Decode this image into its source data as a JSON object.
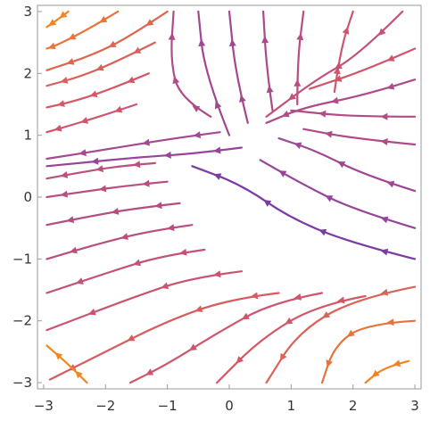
{
  "chart_data": {
    "type": "streamplot",
    "title": "",
    "xlabel": "",
    "ylabel": "",
    "xlim": [
      -3.1,
      3.1
    ],
    "ylim": [
      -3.1,
      3.1
    ],
    "x_ticks": [
      -3,
      -2,
      -1,
      0,
      1,
      2,
      3
    ],
    "y_ticks": [
      -3,
      -2,
      -1,
      0,
      1,
      2,
      3
    ],
    "x_tick_labels": [
      "−3",
      "−2",
      "−1",
      "0",
      "1",
      "2",
      "3"
    ],
    "y_tick_labels": [
      "−3",
      "−2",
      "−1",
      "0",
      "1",
      "2",
      "3"
    ],
    "grid": false,
    "legend": "none",
    "color_scheme": {
      "description": "speed-colored streamlines, slow = dark blue/purple, fast = orange",
      "low": "#2a1f96",
      "mid": "#8a3fa6",
      "high_mid": "#d2566a",
      "high": "#f4861d"
    },
    "streamlines": [
      {
        "points": [
          [
            -1.2,
            0.55
          ],
          [
            -1.8,
            0.5
          ],
          [
            -2.4,
            0.4
          ],
          [
            -2.95,
            0.3
          ]
        ]
      },
      {
        "points": [
          [
            -1.0,
            0.25
          ],
          [
            -1.7,
            0.18
          ],
          [
            -2.4,
            0.08
          ],
          [
            -2.95,
            0.0
          ]
        ]
      },
      {
        "points": [
          [
            -0.8,
            -0.1
          ],
          [
            -1.5,
            -0.18
          ],
          [
            -2.2,
            -0.3
          ],
          [
            -2.95,
            -0.45
          ]
        ]
      },
      {
        "points": [
          [
            -0.6,
            -0.45
          ],
          [
            -1.3,
            -0.55
          ],
          [
            -2.1,
            -0.75
          ],
          [
            -2.95,
            -1.0
          ]
        ]
      },
      {
        "points": [
          [
            -0.4,
            -0.85
          ],
          [
            -1.1,
            -0.95
          ],
          [
            -1.9,
            -1.2
          ],
          [
            -2.95,
            -1.55
          ]
        ]
      },
      {
        "points": [
          [
            0.2,
            -1.2
          ],
          [
            -0.6,
            -1.3
          ],
          [
            -1.5,
            -1.6
          ],
          [
            -2.95,
            -2.15
          ]
        ]
      },
      {
        "points": [
          [
            0.8,
            -1.55
          ],
          [
            0.0,
            -1.65
          ],
          [
            -1.0,
            -2.0
          ],
          [
            -2.2,
            -2.6
          ],
          [
            -2.9,
            -2.95
          ]
        ]
      },
      {
        "points": [
          [
            1.5,
            -1.55
          ],
          [
            0.7,
            -1.7
          ],
          [
            -0.2,
            -2.2
          ],
          [
            -1.0,
            -2.7
          ],
          [
            -1.6,
            -3.0
          ]
        ]
      },
      {
        "points": [
          [
            2.2,
            -1.6
          ],
          [
            1.4,
            -1.75
          ],
          [
            0.5,
            -2.3
          ],
          [
            -0.2,
            -3.0
          ]
        ]
      },
      {
        "points": [
          [
            3.0,
            -1.45
          ],
          [
            2.0,
            -1.65
          ],
          [
            1.1,
            -2.2
          ],
          [
            0.6,
            -3.0
          ]
        ]
      },
      {
        "points": [
          [
            3.0,
            -2.0
          ],
          [
            2.2,
            -2.05
          ],
          [
            1.7,
            -2.4
          ],
          [
            1.5,
            -3.0
          ]
        ]
      },
      {
        "points": [
          [
            2.9,
            -2.65
          ],
          [
            2.5,
            -2.75
          ],
          [
            2.2,
            -3.0
          ]
        ]
      },
      {
        "points": [
          [
            -1.5,
            1.5
          ],
          [
            -2.1,
            1.3
          ],
          [
            -2.6,
            1.15
          ],
          [
            -2.95,
            1.05
          ]
        ]
      },
      {
        "points": [
          [
            -1.3,
            2.0
          ],
          [
            -1.9,
            1.75
          ],
          [
            -2.5,
            1.55
          ],
          [
            -2.95,
            1.45
          ]
        ]
      },
      {
        "points": [
          [
            -1.2,
            2.5
          ],
          [
            -1.8,
            2.2
          ],
          [
            -2.4,
            1.95
          ],
          [
            -2.95,
            1.8
          ]
        ]
      },
      {
        "points": [
          [
            -1.0,
            3.0
          ],
          [
            -1.6,
            2.6
          ],
          [
            -2.2,
            2.3
          ],
          [
            -2.95,
            2.05
          ]
        ]
      },
      {
        "points": [
          [
            -1.8,
            3.0
          ],
          [
            -2.3,
            2.7
          ],
          [
            -2.8,
            2.45
          ],
          [
            -2.95,
            2.4
          ]
        ]
      },
      {
        "points": [
          [
            -2.6,
            3.0
          ],
          [
            -2.8,
            2.85
          ],
          [
            -2.95,
            2.75
          ]
        ]
      },
      {
        "points": [
          [
            -0.15,
            1.05
          ],
          [
            -0.9,
            0.95
          ],
          [
            -1.8,
            0.8
          ],
          [
            -2.95,
            0.62
          ]
        ]
      },
      {
        "points": [
          [
            -0.3,
            1.3
          ],
          [
            -0.8,
            1.6
          ],
          [
            -0.95,
            2.2
          ],
          [
            -0.9,
            3.0
          ]
        ]
      },
      {
        "points": [
          [
            0.0,
            1.0
          ],
          [
            -0.4,
            2.0
          ],
          [
            -0.5,
            3.0
          ]
        ]
      },
      {
        "points": [
          [
            0.3,
            1.2
          ],
          [
            0.1,
            2.0
          ],
          [
            0.0,
            3.0
          ]
        ]
      },
      {
        "points": [
          [
            0.7,
            1.4
          ],
          [
            0.6,
            2.1
          ],
          [
            0.55,
            3.0
          ]
        ]
      },
      {
        "points": [
          [
            1.1,
            1.5
          ],
          [
            1.1,
            2.2
          ],
          [
            1.2,
            3.0
          ]
        ]
      },
      {
        "points": [
          [
            1.7,
            1.7
          ],
          [
            1.8,
            2.4
          ],
          [
            2.0,
            3.0
          ]
        ]
      },
      {
        "points": [
          [
            2.8,
            3.0
          ],
          [
            2.1,
            2.3
          ],
          [
            1.4,
            1.9
          ],
          [
            0.6,
            1.3
          ]
        ]
      },
      {
        "points": [
          [
            3.0,
            2.4
          ],
          [
            2.2,
            2.05
          ],
          [
            1.3,
            1.75
          ]
        ]
      },
      {
        "points": [
          [
            3.0,
            1.9
          ],
          [
            2.2,
            1.65
          ],
          [
            1.2,
            1.45
          ],
          [
            0.6,
            1.2
          ]
        ]
      },
      {
        "points": [
          [
            3.0,
            1.3
          ],
          [
            2.0,
            1.3
          ],
          [
            1.0,
            1.4
          ]
        ]
      },
      {
        "points": [
          [
            3.0,
            0.85
          ],
          [
            2.0,
            0.95
          ],
          [
            1.2,
            1.1
          ]
        ]
      },
      {
        "points": [
          [
            3.0,
            0.1
          ],
          [
            2.2,
            0.35
          ],
          [
            1.4,
            0.75
          ],
          [
            0.8,
            0.95
          ]
        ]
      },
      {
        "points": [
          [
            3.0,
            -0.5
          ],
          [
            2.0,
            -0.2
          ],
          [
            1.2,
            0.2
          ],
          [
            0.5,
            0.6
          ]
        ]
      },
      {
        "points": [
          [
            3.0,
            -1.0
          ],
          [
            2.0,
            -0.75
          ],
          [
            1.0,
            -0.35
          ],
          [
            0.2,
            0.2
          ],
          [
            -0.6,
            0.5
          ]
        ]
      },
      {
        "points": [
          [
            0.2,
            0.8
          ],
          [
            -0.6,
            0.7
          ],
          [
            -1.4,
            0.65
          ],
          [
            -2.95,
            0.5
          ]
        ]
      },
      {
        "points": [
          [
            -2.3,
            -3.0
          ],
          [
            -2.6,
            -2.7
          ],
          [
            -2.95,
            -2.4
          ]
        ]
      }
    ]
  }
}
